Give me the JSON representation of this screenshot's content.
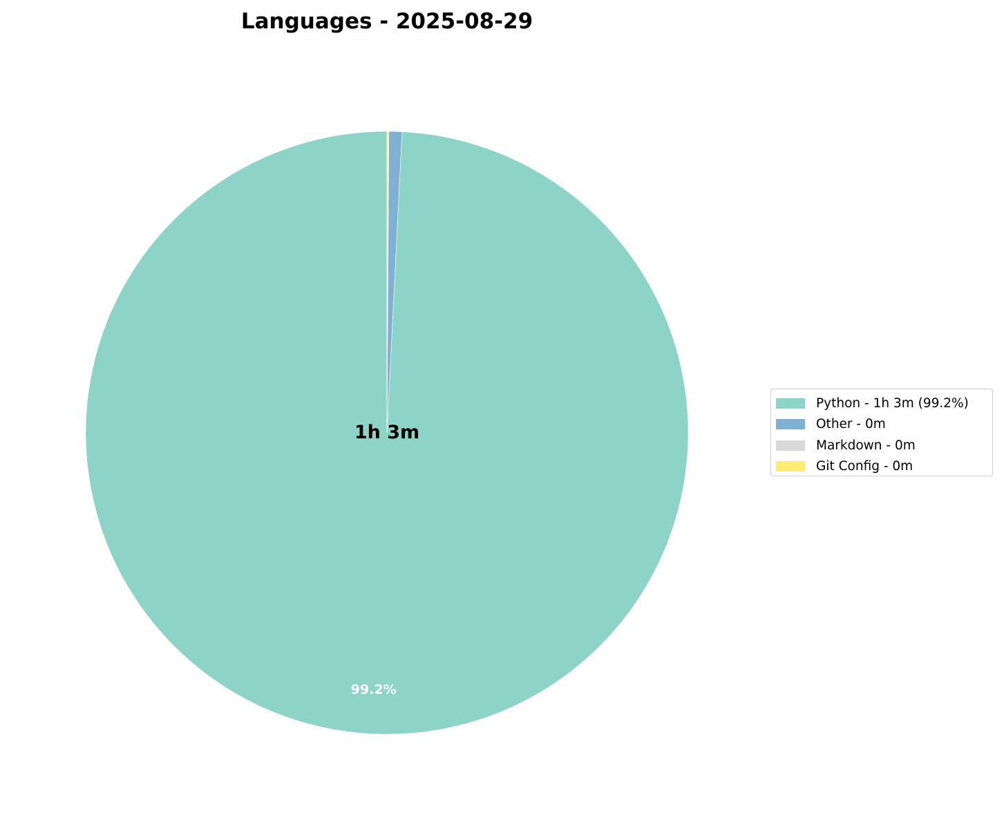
{
  "chart_data": {
    "type": "pie",
    "title": "Languages - 2025-08-29",
    "center_label": "1h 3m",
    "slices": [
      {
        "label": "Python",
        "legend": "Python - 1h 3m (99.2%)",
        "value": 99.2,
        "pct_label": "99.2%",
        "color": "#8dd3c7"
      },
      {
        "label": "Other",
        "legend": "Other - 0m",
        "value": 0.7,
        "pct_label": "",
        "color": "#80b1d3"
      },
      {
        "label": "Markdown",
        "legend": "Markdown - 0m",
        "value": 0.05,
        "pct_label": "",
        "color": "#d9d9d9"
      },
      {
        "label": "Git Config",
        "legend": "Git Config - 0m",
        "value": 0.05,
        "pct_label": "",
        "color": "#ffed6f"
      }
    ],
    "legend_placement": "right",
    "start_angle_deg": 90,
    "direction": "counterclockwise"
  }
}
